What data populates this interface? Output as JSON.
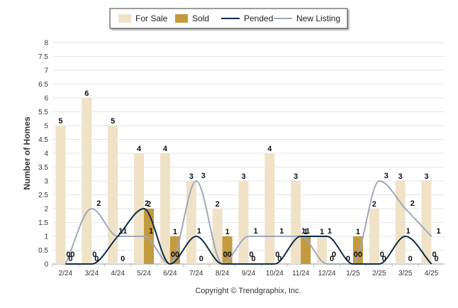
{
  "chart_data": {
    "type": "bar",
    "categories": [
      "2/24",
      "3/24",
      "4/24",
      "5/24",
      "6/24",
      "7/24",
      "8/24",
      "9/24",
      "10/24",
      "11/24",
      "12/24",
      "1/25",
      "2/25",
      "3/25",
      "4/25"
    ],
    "series": [
      {
        "name": "For Sale",
        "type": "bar",
        "color": "#efe2c7",
        "values": [
          5,
          6,
          5,
          4,
          4,
          3,
          2,
          3,
          4,
          3,
          1,
          0,
          2,
          3,
          3
        ]
      },
      {
        "name": "Sold",
        "type": "bar",
        "color": "#c39a3e",
        "values": [
          0,
          0,
          0,
          2,
          1,
          0,
          1,
          0,
          0,
          1,
          0,
          1,
          0,
          0,
          0
        ]
      },
      {
        "name": "Pended",
        "type": "line",
        "color": "#0f2a4a",
        "values": [
          0,
          0,
          1,
          2,
          0,
          1,
          0,
          0,
          0,
          1,
          1,
          0,
          0,
          1,
          0
        ]
      },
      {
        "name": "New Listing",
        "type": "line",
        "color": "#9ea7bc",
        "values": [
          0,
          2,
          1,
          1,
          0,
          3,
          0,
          1,
          1,
          1,
          0,
          0,
          3,
          2,
          1
        ]
      }
    ],
    "ylabel": "Number of Homes",
    "ylim": [
      0,
      8
    ],
    "yticks": [
      "0",
      "0.5",
      "1",
      "1.5",
      "2",
      "2.5",
      "3",
      "3.5",
      "4",
      "4.5",
      "5",
      "5.5",
      "6",
      "6.5",
      "7",
      "7.5",
      "8"
    ],
    "grid": true,
    "legend_position": "top-center"
  },
  "credit": "Copyright © Trendgraphix, Inc."
}
